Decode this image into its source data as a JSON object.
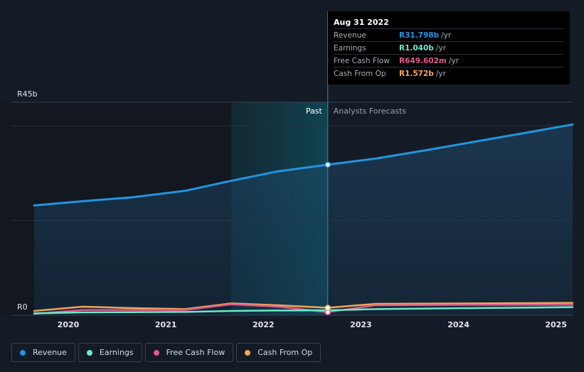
{
  "tooltip": {
    "date": "Aug 31 2022",
    "rows": [
      {
        "label": "Revenue",
        "value": "R31.798b",
        "unit": "/yr",
        "color": "#2394df"
      },
      {
        "label": "Earnings",
        "value": "R1.040b",
        "unit": "/yr",
        "color": "#6ee8c9"
      },
      {
        "label": "Free Cash Flow",
        "value": "R649.602m",
        "unit": "/yr",
        "color": "#e05a8f"
      },
      {
        "label": "Cash From Op",
        "value": "R1.572b",
        "unit": "/yr",
        "color": "#f2a65a"
      }
    ]
  },
  "chart_data": {
    "type": "line",
    "ylabels": {
      "top": "R45b",
      "bottom": "R0"
    },
    "ylim": [
      0,
      45
    ],
    "xlim": [
      2019.65,
      2025.17
    ],
    "xticks": [
      "2020",
      "2021",
      "2022",
      "2023",
      "2024",
      "2025"
    ],
    "past_label": "Past",
    "forecast_label": "Analysts Forecasts",
    "cursor_x": 2022.66,
    "shade_start": 2021.67,
    "series": [
      {
        "name": "Revenue",
        "color": "#2394df",
        "x": [
          2019.65,
          2020.15,
          2020.65,
          2021.2,
          2021.67,
          2022.15,
          2022.66,
          2023.15,
          2023.65,
          2024.15,
          2024.65,
          2025.17
        ],
        "y": [
          23.2,
          24.1,
          24.9,
          26.3,
          28.4,
          30.4,
          31.8,
          33.1,
          34.8,
          36.6,
          38.4,
          40.3
        ]
      },
      {
        "name": "Earnings",
        "color": "#6ee8c9",
        "x": [
          2019.65,
          2020.15,
          2021.2,
          2021.67,
          2022.15,
          2022.66,
          2023.15,
          2024.15,
          2025.17
        ],
        "y": [
          0.4,
          0.6,
          0.7,
          0.9,
          1.0,
          1.04,
          1.3,
          1.5,
          1.7
        ]
      },
      {
        "name": "Free Cash Flow",
        "color": "#e05a8f",
        "x": [
          2019.65,
          2020.15,
          2021.2,
          2021.67,
          2022.15,
          2022.66,
          2023.15,
          2024.15,
          2025.17
        ],
        "y": [
          0.3,
          1.1,
          1.1,
          2.3,
          1.8,
          0.65,
          2.1,
          2.2,
          2.2
        ]
      },
      {
        "name": "Cash From Op",
        "color": "#f2a65a",
        "x": [
          2019.65,
          2020.15,
          2020.65,
          2021.2,
          2021.67,
          2022.15,
          2022.66,
          2023.15,
          2024.15,
          2025.17
        ],
        "y": [
          0.9,
          1.8,
          1.5,
          1.3,
          2.5,
          2.1,
          1.57,
          2.4,
          2.5,
          2.6
        ]
      }
    ]
  },
  "legend": [
    {
      "label": "Revenue",
      "color": "#2394df"
    },
    {
      "label": "Earnings",
      "color": "#6ee8c9"
    },
    {
      "label": "Free Cash Flow",
      "color": "#e05a8f"
    },
    {
      "label": "Cash From Op",
      "color": "#f2a65a"
    }
  ]
}
